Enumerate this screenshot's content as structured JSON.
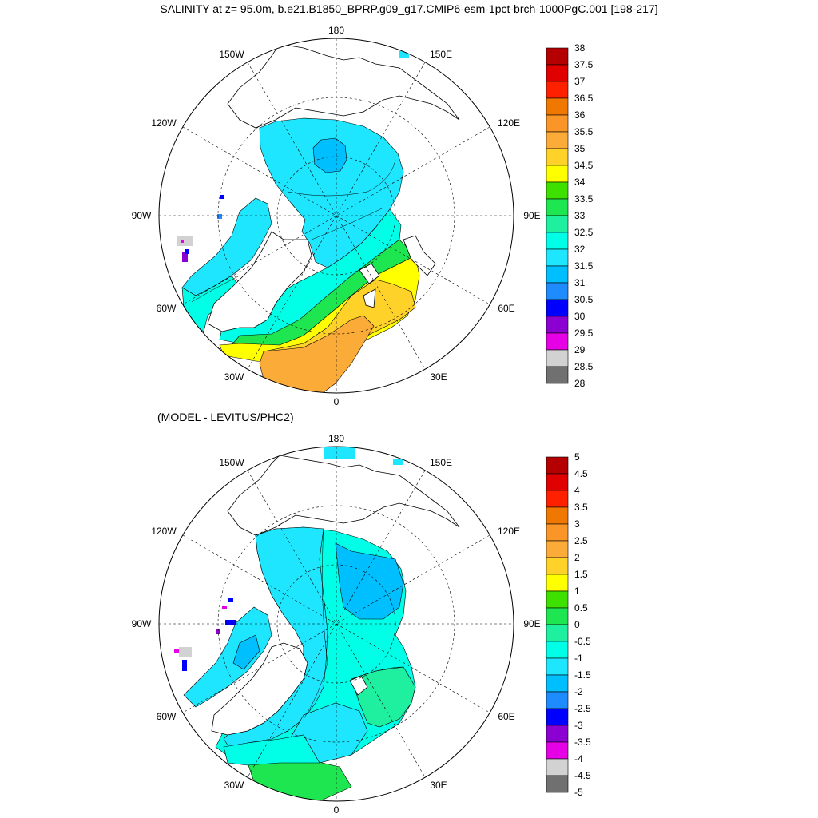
{
  "title": "SALINITY at z=  95.0m, b.e21.B1850_BPRP.g09_g17.CMIP6-esm-1pct-brch-1000PgC.001 [198-217]",
  "subtitle": "(MODEL - LEVITUS/PHC2)",
  "longitude_labels": [
    "180",
    "150E",
    "120E",
    "90E",
    "60E",
    "30E",
    "0",
    "30W",
    "60W",
    "90W",
    "120W",
    "150W"
  ],
  "panels": [
    {
      "name": "salinity",
      "colorbar": {
        "labels": [
          "38",
          "37.5",
          "37",
          "36.5",
          "36",
          "35.5",
          "35",
          "34.5",
          "34",
          "33.5",
          "33",
          "32.5",
          "32",
          "31.5",
          "31",
          "30.5",
          "30",
          "29.5",
          "29",
          "28.5",
          "28"
        ],
        "colors": [
          "#b40000",
          "#e00000",
          "#ff2000",
          "#f07800",
          "#fa9628",
          "#fbab38",
          "#ffd22a",
          "#ffff00",
          "#3ee000",
          "#1ee650",
          "#1ef0a0",
          "#00ffe6",
          "#1ee6ff",
          "#00bfff",
          "#1e8cff",
          "#0000ff",
          "#8c00d2",
          "#e600e6",
          "#d2d2d2",
          "#707070"
        ]
      }
    },
    {
      "name": "difference",
      "colorbar": {
        "labels": [
          "5",
          "4.5",
          "4",
          "3.5",
          "3",
          "2.5",
          "2",
          "1.5",
          "1",
          "0.5",
          "0",
          "-0.5",
          "-1",
          "-1.5",
          "-2",
          "-2.5",
          "-3",
          "-3.5",
          "-4",
          "-4.5",
          "-5"
        ],
        "colors": [
          "#b40000",
          "#e00000",
          "#ff2000",
          "#f07800",
          "#fa9628",
          "#fbab38",
          "#ffd22a",
          "#ffff00",
          "#3ee000",
          "#1ee650",
          "#1ef0a0",
          "#00ffe6",
          "#1ee6ff",
          "#00bfff",
          "#1e8cff",
          "#0000ff",
          "#8c00d2",
          "#e600e6",
          "#d2d2d2",
          "#707070"
        ]
      }
    }
  ]
}
